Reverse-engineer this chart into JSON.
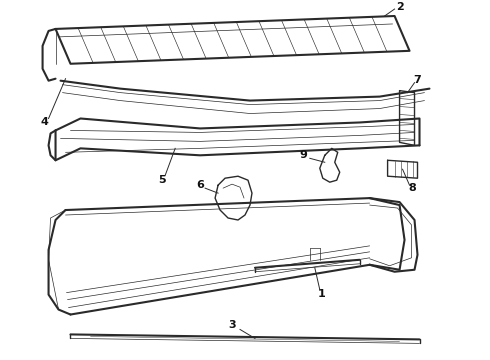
{
  "bg_color": "#ffffff",
  "line_color": "#2a2a2a",
  "text_color": "#111111",
  "lw": 1.0,
  "lw_thin": 0.5,
  "lw_thick": 1.5
}
